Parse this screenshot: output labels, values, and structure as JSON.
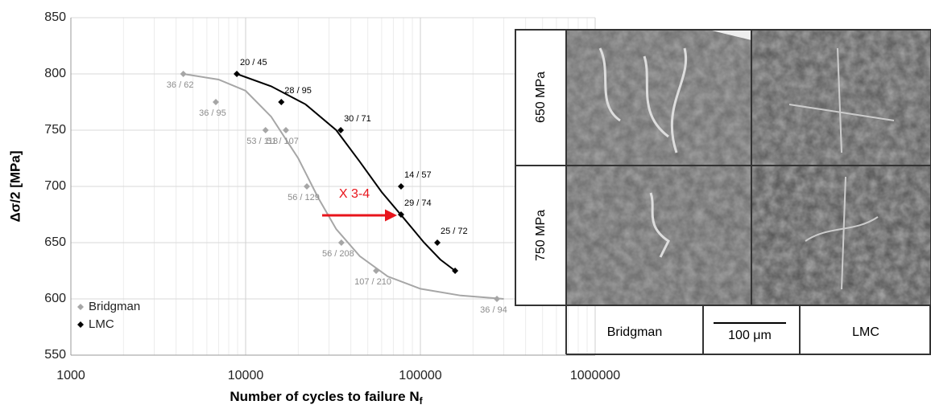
{
  "chart_data": {
    "type": "scatter",
    "x_log": true,
    "grid": true,
    "legend": "lower-left",
    "y_label": "Δσ/2 [MPa]",
    "x_label": "Number of cycles to failure N",
    "x_label_sub": "f",
    "xlim": [
      1000,
      1000000
    ],
    "xticks": [
      1000,
      10000,
      100000,
      1000000
    ],
    "ylim": [
      550,
      850
    ],
    "yticks": [
      550,
      600,
      650,
      700,
      750,
      800,
      850
    ],
    "series": [
      {
        "name": "Bridgman",
        "color": "#a6a6a6",
        "label_color": "#8c8c8c",
        "x": [
          4400,
          6750,
          13000,
          17000,
          22400,
          35300,
          55800,
          274000
        ],
        "values": [
          800,
          775,
          750,
          750,
          700,
          650,
          625,
          600
        ],
        "point_labels": [
          "36 / 62",
          "36 / 95",
          "53 / 118",
          "51 / 107",
          "56 / 129",
          "56 / 208",
          "107 / 210",
          "36 / 94"
        ],
        "trend": {
          "x": [
            4400,
            7000,
            10000,
            14000,
            20000,
            26000,
            33000,
            45000,
            65000,
            100000,
            170000,
            300000
          ],
          "y": [
            800,
            795,
            785,
            762,
            725,
            690,
            662,
            638,
            620,
            609,
            603,
            600
          ]
        }
      },
      {
        "name": "LMC",
        "color": "#000000",
        "label_color": "#000000",
        "x": [
          8900,
          16000,
          35000,
          77500,
          77500,
          125000,
          158000
        ],
        "values": [
          800,
          775,
          750,
          700,
          675,
          650,
          625
        ],
        "point_labels": [
          "20 / 45",
          "28 / 95",
          "30 / 71",
          "14 / 57",
          "29 / 74",
          "25 / 72",
          null
        ],
        "trend": {
          "x": [
            8900,
            14000,
            22000,
            33000,
            45000,
            60000,
            80000,
            105000,
            130000,
            158000
          ],
          "y": [
            800,
            789,
            773,
            750,
            722,
            695,
            672,
            650,
            635,
            625
          ]
        }
      }
    ],
    "annotations": [
      {
        "text": "X 3-4",
        "color": "#e8141b"
      }
    ],
    "panel": {
      "rows": [
        "650 MPa",
        "750 MPa"
      ],
      "columns": [
        "Bridgman",
        "LMC"
      ],
      "scale_bar": "100 μm"
    }
  }
}
